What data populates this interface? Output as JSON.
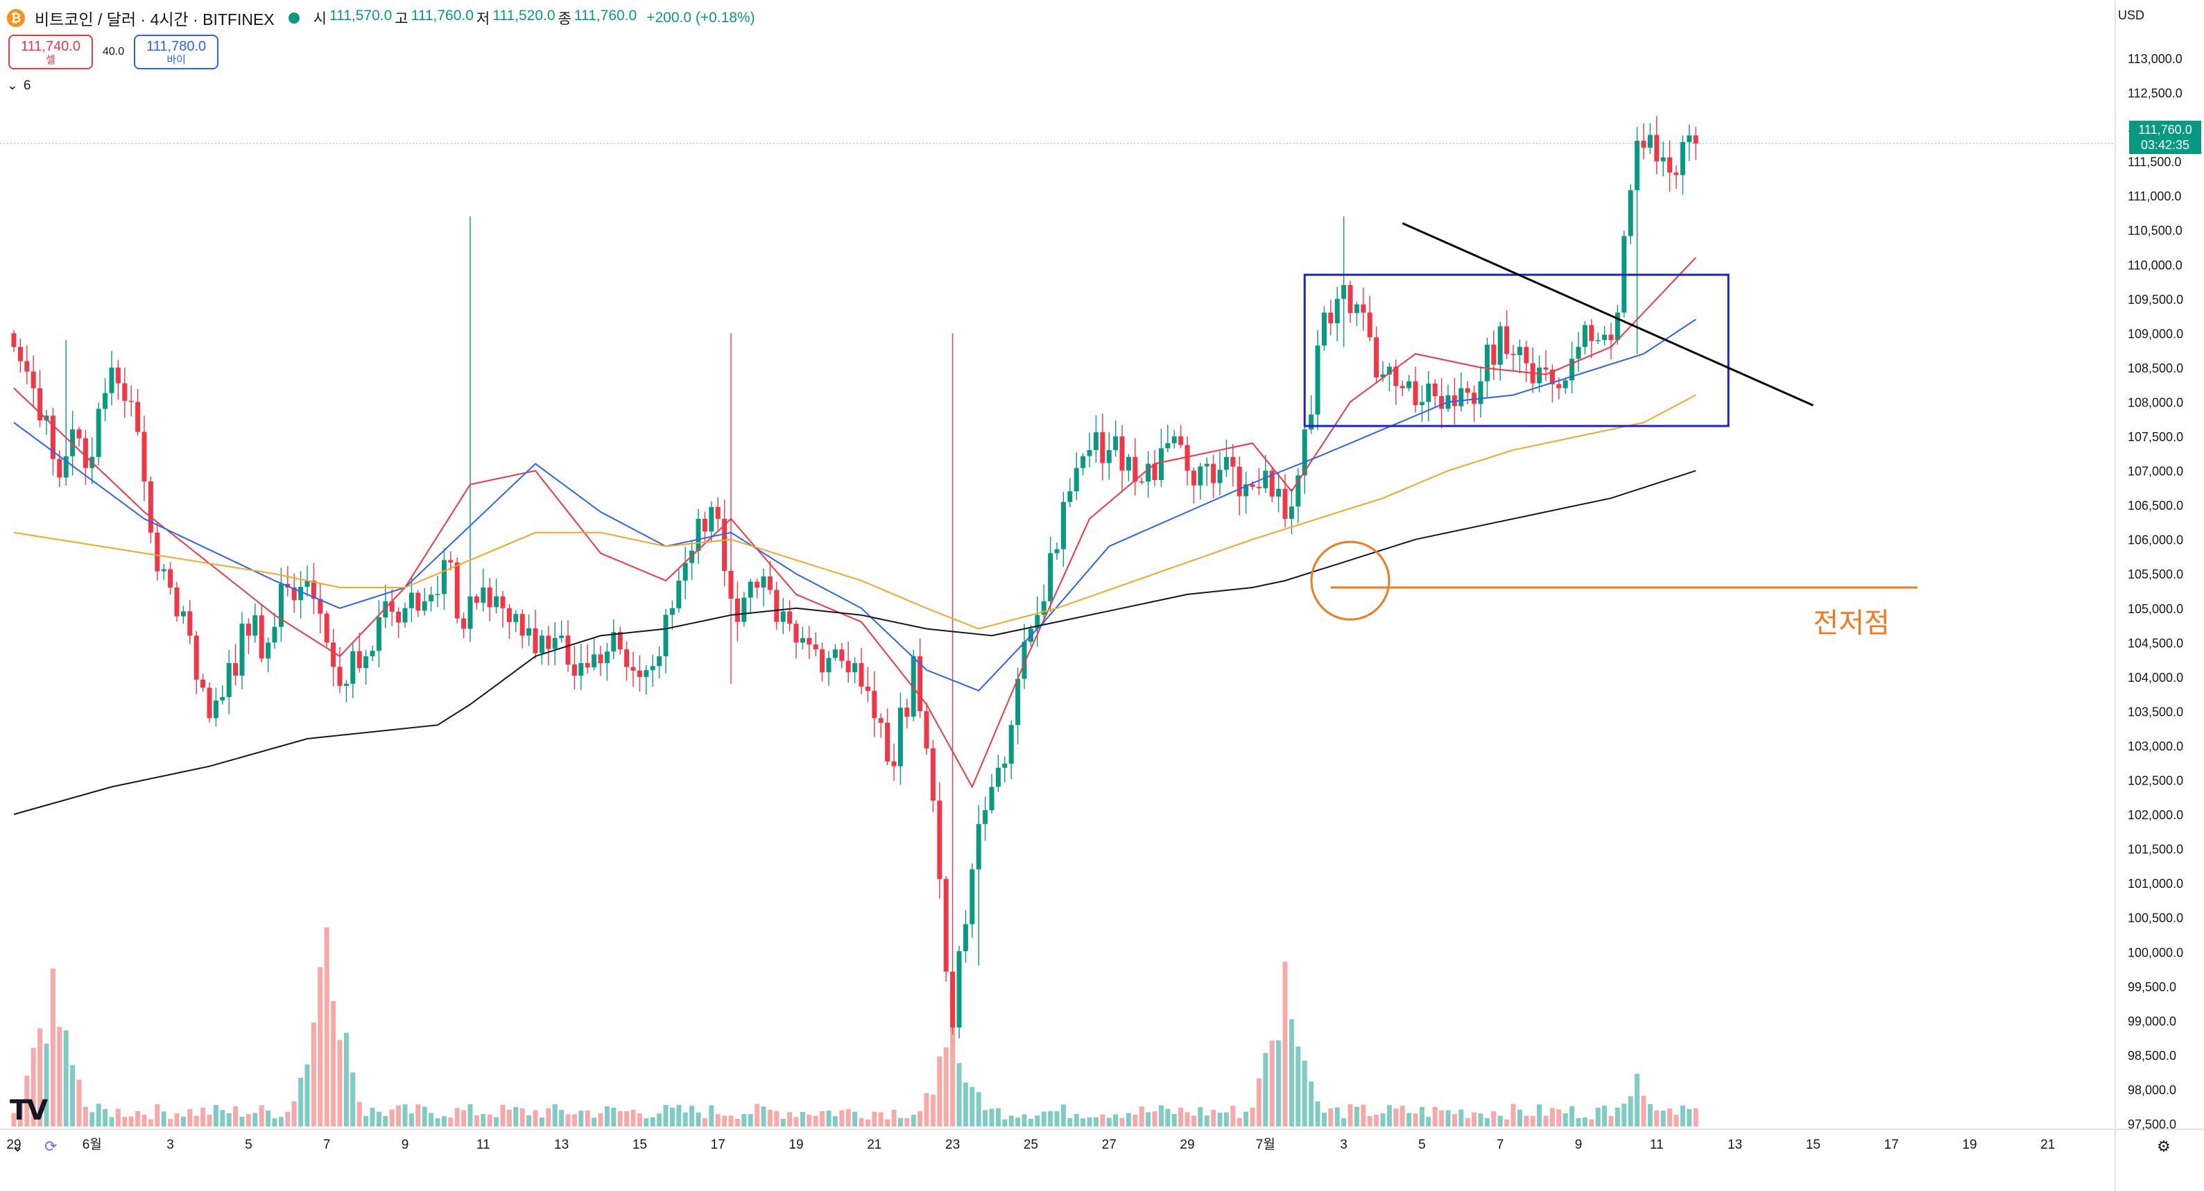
{
  "header": {
    "title": "비트코인 / 달러 · 4시간 · BITFINEX",
    "coin_icon": "bitcoin-icon",
    "status_color": "#089981",
    "ohlc": [
      {
        "key": "시",
        "value": "111,570.0"
      },
      {
        "key": "고",
        "value": "111,760.0"
      },
      {
        "key": "저",
        "value": "111,520.0"
      },
      {
        "key": "종",
        "value": "111,760.0"
      }
    ],
    "change": "+200.0 (+0.18%)"
  },
  "trade": {
    "sell_price": "111,740.0",
    "sell_label": "셀",
    "spread": "40.0",
    "buy_price": "111,780.0",
    "buy_label": "바이"
  },
  "indicators": {
    "toggle_icon": "chevron-down-icon",
    "count": "6"
  },
  "price_axis": {
    "currency": "USD",
    "current_price": "111,760.0",
    "countdown": "03:42:35"
  },
  "logo": "TV",
  "footer": {
    "left_icon": "chevron-down-icon",
    "sync_icon": "refresh-icon",
    "right_icon": "settings-icon"
  },
  "chart_data": {
    "type": "candlestick",
    "ylim": [
      97200,
      113300
    ],
    "y_ticks": [
      97500,
      98000,
      98500,
      99000,
      99500,
      100000,
      100500,
      101000,
      101500,
      102000,
      102500,
      103000,
      103500,
      104000,
      104500,
      105000,
      105500,
      106000,
      106500,
      107000,
      107500,
      108000,
      108500,
      109000,
      109500,
      110000,
      110500,
      111000,
      111500,
      112000,
      112500,
      113000
    ],
    "x_labels": [
      {
        "label": "29",
        "bar": 0
      },
      {
        "label": "6월",
        "bar": 12
      },
      {
        "label": "3",
        "bar": 24
      },
      {
        "label": "5",
        "bar": 36
      },
      {
        "label": "7",
        "bar": 48
      },
      {
        "label": "9",
        "bar": 60
      },
      {
        "label": "11",
        "bar": 72
      },
      {
        "label": "13",
        "bar": 84
      },
      {
        "label": "15",
        "bar": 96
      },
      {
        "label": "17",
        "bar": 108
      },
      {
        "label": "19",
        "bar": 120
      },
      {
        "label": "21",
        "bar": 132
      },
      {
        "label": "23",
        "bar": 144
      },
      {
        "label": "25",
        "bar": 156
      },
      {
        "label": "27",
        "bar": 168
      },
      {
        "label": "29",
        "bar": 180
      },
      {
        "label": "7월",
        "bar": 192
      },
      {
        "label": "3",
        "bar": 204
      },
      {
        "label": "5",
        "bar": 216
      },
      {
        "label": "7",
        "bar": 228
      },
      {
        "label": "9",
        "bar": 240
      },
      {
        "label": "11",
        "bar": 252
      },
      {
        "label": "13",
        "bar": 264
      },
      {
        "label": "15",
        "bar": 276
      },
      {
        "label": "17",
        "bar": 288
      },
      {
        "label": "19",
        "bar": 300
      },
      {
        "label": "21",
        "bar": 312
      }
    ],
    "bar_range": [
      0,
      330
    ],
    "last_bar": 258,
    "candle_closes": [
      [
        0,
        108800
      ],
      [
        3,
        108200
      ],
      [
        5,
        107800
      ],
      [
        7,
        106900
      ],
      [
        9,
        107600
      ],
      [
        12,
        107200
      ],
      [
        15,
        108500
      ],
      [
        18,
        108000
      ],
      [
        21,
        106100
      ],
      [
        24,
        105300
      ],
      [
        27,
        104600
      ],
      [
        30,
        103400
      ],
      [
        33,
        104200
      ],
      [
        36,
        104600
      ],
      [
        39,
        104500
      ],
      [
        42,
        105300
      ],
      [
        45,
        105400
      ],
      [
        48,
        104500
      ],
      [
        51,
        103900
      ],
      [
        54,
        104300
      ],
      [
        57,
        105100
      ],
      [
        60,
        105000
      ],
      [
        63,
        105100
      ],
      [
        66,
        105700
      ],
      [
        69,
        104700
      ],
      [
        72,
        105300
      ],
      [
        75,
        105000
      ],
      [
        78,
        104600
      ],
      [
        81,
        104600
      ],
      [
        84,
        104600
      ],
      [
        87,
        104200
      ],
      [
        90,
        104200
      ],
      [
        93,
        104400
      ],
      [
        96,
        104000
      ],
      [
        99,
        104300
      ],
      [
        102,
        105400
      ],
      [
        105,
        106300
      ],
      [
        108,
        106300
      ],
      [
        111,
        104800
      ],
      [
        114,
        105300
      ],
      [
        117,
        104800
      ],
      [
        120,
        104500
      ],
      [
        123,
        104400
      ],
      [
        126,
        104400
      ],
      [
        129,
        104200
      ],
      [
        132,
        103400
      ],
      [
        135,
        102700
      ],
      [
        138,
        104300
      ],
      [
        141,
        102200
      ],
      [
        144,
        98900
      ],
      [
        147,
        101200
      ],
      [
        150,
        102400
      ],
      [
        153,
        103300
      ],
      [
        156,
        104700
      ],
      [
        159,
        105800
      ],
      [
        162,
        106700
      ],
      [
        165,
        107300
      ],
      [
        168,
        107300
      ],
      [
        171,
        107200
      ],
      [
        174,
        107100
      ],
      [
        177,
        107400
      ],
      [
        180,
        107000
      ],
      [
        183,
        107100
      ],
      [
        186,
        107200
      ],
      [
        189,
        106800
      ],
      [
        192,
        107000
      ],
      [
        195,
        106300
      ],
      [
        198,
        107600
      ],
      [
        201,
        109300
      ],
      [
        204,
        109700
      ],
      [
        207,
        109300
      ],
      [
        210,
        108400
      ],
      [
        213,
        108200
      ],
      [
        216,
        108000
      ],
      [
        219,
        107900
      ],
      [
        222,
        108200
      ],
      [
        225,
        108300
      ],
      [
        228,
        109100
      ],
      [
        231,
        108800
      ],
      [
        234,
        108500
      ],
      [
        237,
        108200
      ],
      [
        240,
        108800
      ],
      [
        243,
        108900
      ],
      [
        246,
        109300
      ],
      [
        249,
        111800
      ],
      [
        252,
        111500
      ],
      [
        255,
        111300
      ],
      [
        258,
        111760
      ]
    ],
    "candle_wick_extremes": [
      [
        8,
        108900,
        107000
      ],
      [
        70,
        110700,
        105400
      ],
      [
        110,
        109000,
        103900
      ],
      [
        144,
        109000,
        98900
      ],
      [
        148,
        101300,
        99800
      ],
      [
        204,
        110700,
        108800
      ],
      [
        249,
        112000,
        108700
      ],
      [
        258,
        111760,
        111520
      ]
    ],
    "volume_peaks": [
      {
        "bar": 6,
        "value": 0.69
      },
      {
        "bar": 48,
        "value": 0.87
      },
      {
        "bar": 144,
        "value": 0.46
      },
      {
        "bar": 195,
        "value": 0.72
      },
      {
        "bar": 249,
        "value": 0.23
      }
    ],
    "series": [
      {
        "color": "#f23645",
        "kind": "ema-short",
        "points": [
          [
            0,
            108200
          ],
          [
            20,
            106400
          ],
          [
            40,
            104900
          ],
          [
            50,
            104300
          ],
          [
            60,
            105300
          ],
          [
            70,
            106800
          ],
          [
            80,
            107000
          ],
          [
            90,
            105800
          ],
          [
            100,
            105400
          ],
          [
            110,
            106300
          ],
          [
            120,
            105200
          ],
          [
            130,
            104800
          ],
          [
            140,
            103600
          ],
          [
            147,
            102400
          ],
          [
            155,
            104200
          ],
          [
            165,
            106300
          ],
          [
            175,
            107100
          ],
          [
            190,
            107400
          ],
          [
            196,
            106700
          ],
          [
            205,
            108000
          ],
          [
            215,
            108700
          ],
          [
            225,
            108500
          ],
          [
            235,
            108400
          ],
          [
            245,
            108800
          ],
          [
            258,
            110100
          ]
        ]
      },
      {
        "color": "#2962ff",
        "kind": "ema-mid",
        "points": [
          [
            0,
            107700
          ],
          [
            20,
            106300
          ],
          [
            40,
            105400
          ],
          [
            50,
            105000
          ],
          [
            60,
            105300
          ],
          [
            70,
            106200
          ],
          [
            80,
            107100
          ],
          [
            90,
            106400
          ],
          [
            100,
            105900
          ],
          [
            110,
            106100
          ],
          [
            120,
            105500
          ],
          [
            130,
            105000
          ],
          [
            140,
            104100
          ],
          [
            148,
            103800
          ],
          [
            158,
            104800
          ],
          [
            168,
            105900
          ],
          [
            180,
            106400
          ],
          [
            192,
            106900
          ],
          [
            200,
            107200
          ],
          [
            210,
            107600
          ],
          [
            220,
            108000
          ],
          [
            230,
            108100
          ],
          [
            240,
            108400
          ],
          [
            250,
            108700
          ],
          [
            258,
            109200
          ]
        ]
      },
      {
        "color": "#f5a623",
        "kind": "ema-long",
        "points": [
          [
            0,
            106100
          ],
          [
            20,
            105800
          ],
          [
            40,
            105500
          ],
          [
            50,
            105300
          ],
          [
            60,
            105300
          ],
          [
            70,
            105700
          ],
          [
            80,
            106100
          ],
          [
            90,
            106100
          ],
          [
            100,
            105900
          ],
          [
            110,
            106000
          ],
          [
            120,
            105700
          ],
          [
            130,
            105400
          ],
          [
            140,
            105000
          ],
          [
            148,
            104700
          ],
          [
            160,
            105000
          ],
          [
            175,
            105500
          ],
          [
            190,
            106000
          ],
          [
            200,
            106300
          ],
          [
            210,
            106600
          ],
          [
            220,
            107000
          ],
          [
            230,
            107300
          ],
          [
            240,
            107500
          ],
          [
            250,
            107700
          ],
          [
            258,
            108100
          ]
        ]
      },
      {
        "color": "#131722",
        "kind": "ema-200",
        "points": [
          [
            0,
            102000
          ],
          [
            15,
            102400
          ],
          [
            30,
            102700
          ],
          [
            45,
            103100
          ],
          [
            55,
            103200
          ],
          [
            65,
            103300
          ],
          [
            70,
            103600
          ],
          [
            80,
            104300
          ],
          [
            90,
            104600
          ],
          [
            100,
            104700
          ],
          [
            110,
            104900
          ],
          [
            120,
            105000
          ],
          [
            130,
            104900
          ],
          [
            140,
            104700
          ],
          [
            150,
            104600
          ],
          [
            160,
            104800
          ],
          [
            170,
            105000
          ],
          [
            180,
            105200
          ],
          [
            190,
            105300
          ],
          [
            195,
            105400
          ],
          [
            205,
            105700
          ],
          [
            215,
            106000
          ],
          [
            225,
            106200
          ],
          [
            235,
            106400
          ],
          [
            245,
            106600
          ],
          [
            258,
            107000
          ]
        ]
      }
    ],
    "drawings": {
      "box": {
        "bar_start": 198,
        "bar_end": 263,
        "y_top": 109850,
        "y_bottom": 107650,
        "color": "#1e22c8"
      },
      "trendline": {
        "bar_start": 213,
        "y_start": 110600,
        "bar_end": 276,
        "y_end": 107950,
        "color": "#000000"
      },
      "support_line": {
        "bar_start": 202,
        "bar_end": 292,
        "y": 105300,
        "color": "#f07b1d"
      },
      "support_circle": {
        "bar": 205,
        "y": 105400,
        "color": "#f07b1d"
      },
      "annotation": {
        "text": "전저점",
        "bar": 276,
        "y": 104850,
        "color": "#f07b1d"
      }
    }
  }
}
